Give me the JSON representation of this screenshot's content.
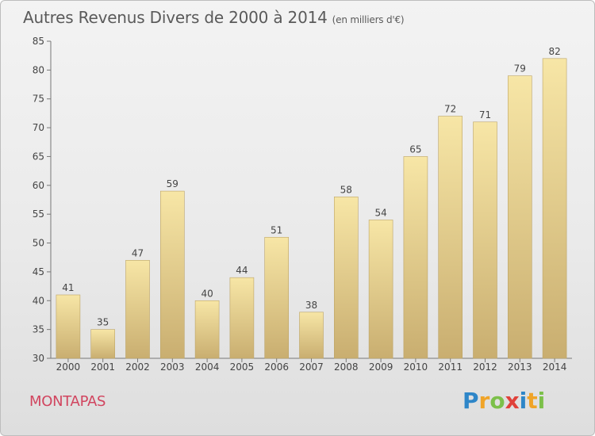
{
  "title": "Autres Revenus Divers de 2000 à 2014",
  "unit": "(en milliers d'€)",
  "commune": "MONTAPAS",
  "logo": {
    "p": "P",
    "r": "r",
    "o": "o",
    "x": "x",
    "i1": "i",
    "t": "t",
    "i2": "i"
  },
  "chart_data": {
    "type": "bar",
    "title": "Autres Revenus Divers de 2000 à 2014",
    "subtitle": "(en milliers d'€)",
    "categories": [
      "2000",
      "2001",
      "2002",
      "2003",
      "2004",
      "2005",
      "2006",
      "2007",
      "2008",
      "2009",
      "2010",
      "2011",
      "2012",
      "2013",
      "2014"
    ],
    "values": [
      41,
      35,
      47,
      59,
      40,
      44,
      51,
      38,
      58,
      54,
      65,
      72,
      71,
      79,
      82
    ],
    "ylim": [
      30,
      85
    ],
    "yticks": [
      30,
      35,
      40,
      45,
      50,
      55,
      60,
      65,
      70,
      75,
      80,
      85
    ],
    "grid": false,
    "colors": {
      "bar_light": "#f6e4a4",
      "bar_dark": "#cbb173",
      "axis": "#777777",
      "text": "#444444"
    }
  }
}
